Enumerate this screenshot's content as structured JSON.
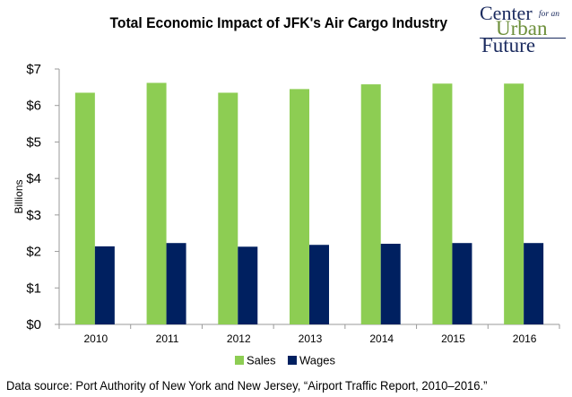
{
  "logo": {
    "word1": "Center",
    "word2": "for an",
    "word3": "Urban",
    "word4": "Future"
  },
  "source": "Data source: Port Authority of New York and New Jersey, “Airport Traffic Report, 2010–2016.”",
  "chart_data": {
    "type": "bar",
    "title": "Total Economic Impact of JFK's Air Cargo Industry",
    "xlabel": "",
    "ylabel": "Billions",
    "ylim": [
      0,
      7
    ],
    "yticks": [
      0,
      1,
      2,
      3,
      4,
      5,
      6,
      7
    ],
    "ytick_labels": [
      "$0",
      "$1",
      "$2",
      "$3",
      "$4",
      "$5",
      "$6",
      "$7"
    ],
    "categories": [
      "2010",
      "2011",
      "2012",
      "2013",
      "2014",
      "2015",
      "2016"
    ],
    "series": [
      {
        "name": "Sales",
        "color": "#8dcd53",
        "values": [
          6.35,
          6.62,
          6.35,
          6.45,
          6.58,
          6.6,
          6.6
        ]
      },
      {
        "name": "Wages",
        "color": "#002060",
        "values": [
          2.14,
          2.23,
          2.13,
          2.18,
          2.21,
          2.23,
          2.23
        ]
      }
    ],
    "grid": false,
    "legend_position": "bottom"
  }
}
